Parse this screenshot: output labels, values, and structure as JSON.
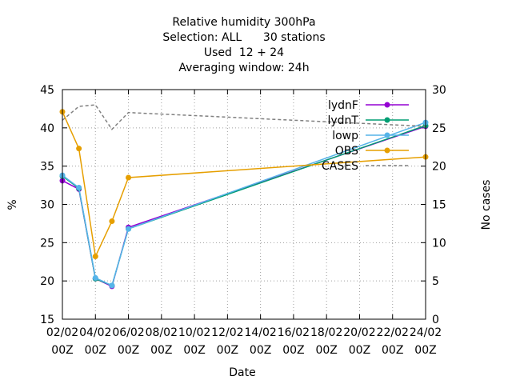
{
  "chart_data": {
    "type": "line",
    "title_lines": [
      "Relative humidity 300hPa",
      "Selection: ALL      30 stations",
      "Used  12 + 24",
      "Averaging window: 24h"
    ],
    "xlabel": "Date",
    "ylabel": "%",
    "y2label": "No cases",
    "x_ticks": [
      {
        "d": 0,
        "l1": "02/02",
        "l2": "00Z"
      },
      {
        "d": 2,
        "l1": "04/02",
        "l2": "00Z"
      },
      {
        "d": 4,
        "l1": "06/02",
        "l2": "00Z"
      },
      {
        "d": 6,
        "l1": "08/02",
        "l2": "00Z"
      },
      {
        "d": 8,
        "l1": "10/02",
        "l2": "00Z"
      },
      {
        "d": 10,
        "l1": "12/02",
        "l2": "00Z"
      },
      {
        "d": 12,
        "l1": "14/02",
        "l2": "00Z"
      },
      {
        "d": 14,
        "l1": "16/02",
        "l2": "00Z"
      },
      {
        "d": 16,
        "l1": "18/02",
        "l2": "00Z"
      },
      {
        "d": 18,
        "l1": "20/02",
        "l2": "00Z"
      },
      {
        "d": 20,
        "l1": "22/02",
        "l2": "00Z"
      },
      {
        "d": 22,
        "l1": "24/02",
        "l2": "00Z"
      }
    ],
    "xlim": [
      0,
      22
    ],
    "ylim": [
      15,
      45
    ],
    "y_ticks": [
      "15",
      "20",
      "25",
      "30",
      "35",
      "40",
      "45"
    ],
    "y2lim": [
      0,
      30
    ],
    "y2_ticks": [
      "0",
      "5",
      "10",
      "15",
      "20",
      "25",
      "30"
    ],
    "legend_position": "top-right",
    "series": [
      {
        "name": "lydnF",
        "color": "#9400d3",
        "marker": "circle",
        "x": [
          0,
          1,
          2,
          3,
          4,
          22
        ],
        "y": [
          33.1,
          32.0,
          20.3,
          19.3,
          27.0,
          40.2
        ]
      },
      {
        "name": "lydnT",
        "color": "#009e73",
        "marker": "circle",
        "x": [
          0,
          1,
          2,
          3,
          4,
          22
        ],
        "y": [
          33.7,
          32.1,
          20.3,
          19.4,
          26.8,
          40.3
        ]
      },
      {
        "name": "lowp",
        "color": "#56b4e9",
        "marker": "circle",
        "x": [
          0,
          1,
          2,
          3,
          4,
          22
        ],
        "y": [
          33.8,
          32.2,
          20.4,
          19.4,
          26.8,
          40.7
        ]
      },
      {
        "name": "OBS",
        "color": "#e69f00",
        "marker": "circle",
        "x": [
          0,
          1,
          2,
          3,
          4,
          22
        ],
        "y": [
          42.1,
          37.3,
          23.2,
          27.8,
          33.5,
          36.2
        ]
      },
      {
        "name": "CASES",
        "color": "#808080",
        "marker": "none",
        "dashed": true,
        "axis": "y2",
        "x": [
          0,
          1,
          2,
          3,
          4,
          6,
          8,
          10,
          12,
          14,
          16,
          18,
          20,
          22
        ],
        "y": [
          26,
          27.8,
          28,
          24.8,
          27,
          26.8,
          26.6,
          26.4,
          26.2,
          26.0,
          25.8,
          25.6,
          25.4,
          25.2
        ]
      }
    ]
  }
}
